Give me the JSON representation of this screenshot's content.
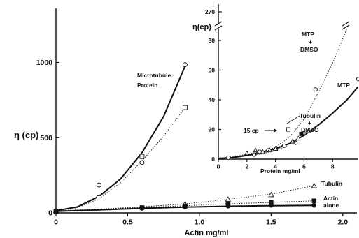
{
  "chart_data": [
    {
      "type": "scatter",
      "name": "main",
      "xlabel": "Actin mg/ml",
      "ylabel": "η (cp)",
      "xlim": [
        0,
        2.05
      ],
      "ylim": [
        0,
        1350
      ],
      "x_ticks": [
        0,
        0.5,
        1.0,
        1.5,
        2.0
      ],
      "x_tick_labels": [
        "0",
        "0.5",
        "1.0",
        "1.5",
        "2.0"
      ],
      "y_ticks": [
        0,
        500,
        1000
      ],
      "y_tick_labels": [
        "0",
        "500",
        "1000"
      ],
      "grid": false,
      "series": [
        {
          "name": "Microtubule Protein",
          "marker": "circle-open",
          "line": "solid",
          "points": [
            [
              0,
              15
            ],
            [
              0.3,
              185
            ],
            [
              0.6,
              335
            ],
            [
              0.9,
              985
            ]
          ],
          "curve": [
            [
              0,
              15
            ],
            [
              0.15,
              40
            ],
            [
              0.3,
              110
            ],
            [
              0.45,
              225
            ],
            [
              0.6,
              400
            ],
            [
              0.75,
              640
            ],
            [
              0.9,
              975
            ]
          ]
        },
        {
          "name": "",
          "marker": "square-open",
          "line": "dotted",
          "points": [
            [
              0.3,
              100
            ],
            [
              0.6,
              375
            ],
            [
              0.9,
              700
            ]
          ],
          "curve": [
            [
              0,
              15
            ],
            [
              0.15,
              35
            ],
            [
              0.3,
              95
            ],
            [
              0.45,
              200
            ],
            [
              0.6,
              345
            ],
            [
              0.75,
              510
            ],
            [
              0.9,
              700
            ]
          ]
        },
        {
          "name": "Tubulin",
          "marker": "triangle-open",
          "line": "dotted",
          "points": [
            [
              0,
              15
            ],
            [
              0.9,
              60
            ],
            [
              1.2,
              90
            ],
            [
              1.5,
              120
            ],
            [
              1.8,
              180
            ]
          ],
          "curve": [
            [
              0,
              15
            ],
            [
              0.3,
              25
            ],
            [
              0.6,
              40
            ],
            [
              0.9,
              60
            ],
            [
              1.2,
              90
            ],
            [
              1.5,
              125
            ],
            [
              1.8,
              180
            ]
          ]
        },
        {
          "name": "Actin alone",
          "marker": "square-filled",
          "line": "dotted",
          "points": [
            [
              0,
              10
            ],
            [
              0.6,
              35
            ],
            [
              0.9,
              45
            ],
            [
              1.2,
              60
            ],
            [
              1.5,
              70
            ],
            [
              1.8,
              80
            ]
          ],
          "curve": [
            [
              0,
              10
            ],
            [
              0.6,
              35
            ],
            [
              1.2,
              60
            ],
            [
              1.8,
              80
            ]
          ]
        },
        {
          "name": "",
          "marker": "circle-filled",
          "line": "solid",
          "points": [
            [
              0.6,
              30
            ],
            [
              0.9,
              40
            ],
            [
              1.2,
              45
            ],
            [
              1.5,
              50
            ],
            [
              1.8,
              50
            ]
          ],
          "curve": [
            [
              0,
              10
            ],
            [
              0.3,
              20
            ],
            [
              0.6,
              30
            ],
            [
              0.9,
              38
            ],
            [
              1.2,
              44
            ],
            [
              1.5,
              48
            ],
            [
              1.8,
              50
            ]
          ]
        }
      ],
      "annotations": {
        "microtubule": [
          "Microtubule",
          "Protein"
        ],
        "tubulin": "Tubulin",
        "actin": [
          "Actin",
          "alone"
        ]
      }
    },
    {
      "type": "scatter",
      "name": "inset",
      "xlabel": "Protein mg/ml",
      "ylabel": "η(cp)",
      "xlim": [
        0,
        9.8
      ],
      "ylim": [
        0,
        88
      ],
      "y_break": {
        "below": 88,
        "top_label_value": 270
      },
      "x_ticks": [
        0,
        2,
        4,
        6,
        8
      ],
      "x_tick_labels": [
        "0",
        "2",
        "4",
        "6",
        "8"
      ],
      "y_ticks": [
        0,
        20,
        40,
        60,
        80
      ],
      "y_tick_labels": [
        "0",
        "20",
        "40",
        "60",
        "80"
      ],
      "y_top_label": "270",
      "grid": false,
      "series": [
        {
          "name": "MTP + DMSO",
          "marker": "circle-open",
          "line": "dotted",
          "points": [
            [
              0.7,
              1
            ],
            [
              2.5,
              3
            ],
            [
              4.6,
              9
            ],
            [
              6.8,
              47
            ]
          ],
          "curve": [
            [
              0,
              0.5
            ],
            [
              1,
              1.2
            ],
            [
              2,
              2.5
            ],
            [
              3,
              4.5
            ],
            [
              4,
              8
            ],
            [
              5,
              15
            ],
            [
              6,
              27
            ],
            [
              7,
              45
            ],
            [
              8,
              65
            ],
            [
              9,
              88
            ]
          ]
        },
        {
          "name": "MTP",
          "marker": "circle-open",
          "line": "solid",
          "points": [
            [
              2.9,
              5
            ],
            [
              3.5,
              6
            ],
            [
              5.4,
              11
            ],
            [
              6.0,
              17
            ],
            [
              9.8,
              54
            ]
          ],
          "curve": [
            [
              0,
              0.5
            ],
            [
              1,
              1
            ],
            [
              2,
              2.5
            ],
            [
              3,
              4.5
            ],
            [
              4,
              7
            ],
            [
              5,
              10.5
            ],
            [
              6,
              16
            ],
            [
              7,
              23
            ],
            [
              8,
              31
            ],
            [
              9,
              40
            ],
            [
              9.8,
              49
            ]
          ]
        },
        {
          "name": "15 cp",
          "marker": "square-open",
          "line": "dotted",
          "points": [
            [
              4.9,
              20
            ]
          ],
          "curve": [
            [
              0,
              0.5
            ],
            [
              1,
              1
            ],
            [
              2,
              2.2
            ],
            [
              3,
              3.5
            ],
            [
              4,
              6
            ],
            [
              4.9,
              9
            ]
          ]
        },
        {
          "name": "Tubulin + DMSO",
          "marker": "triangle-open",
          "line": "dotted",
          "points": [
            [
              2.0,
              4
            ],
            [
              2.6,
              6
            ],
            [
              3.1,
              5
            ],
            [
              3.6,
              6
            ],
            [
              4.0,
              7
            ],
            [
              5.2,
              12
            ],
            [
              5.6,
              14
            ],
            [
              6.0,
              18
            ],
            [
              6.3,
              19
            ]
          ],
          "curve": [
            [
              0,
              0.5
            ],
            [
              1,
              1.5
            ],
            [
              2,
              3.2
            ],
            [
              3,
              5
            ],
            [
              4,
              7.5
            ],
            [
              5,
              11
            ],
            [
              6,
              16
            ],
            [
              6.5,
              19
            ]
          ]
        },
        {
          "name": "",
          "marker": "square-filled",
          "line": "none",
          "points": [
            [
              5.8,
              17
            ]
          ]
        }
      ],
      "annotations": {
        "mtp_dmso": [
          "MTP",
          "+",
          "DMSO"
        ],
        "mtp": "MTP",
        "cp15": "15 cp",
        "tubulin_dmso": [
          "Tubulin",
          "+",
          "DMSO"
        ]
      }
    }
  ]
}
